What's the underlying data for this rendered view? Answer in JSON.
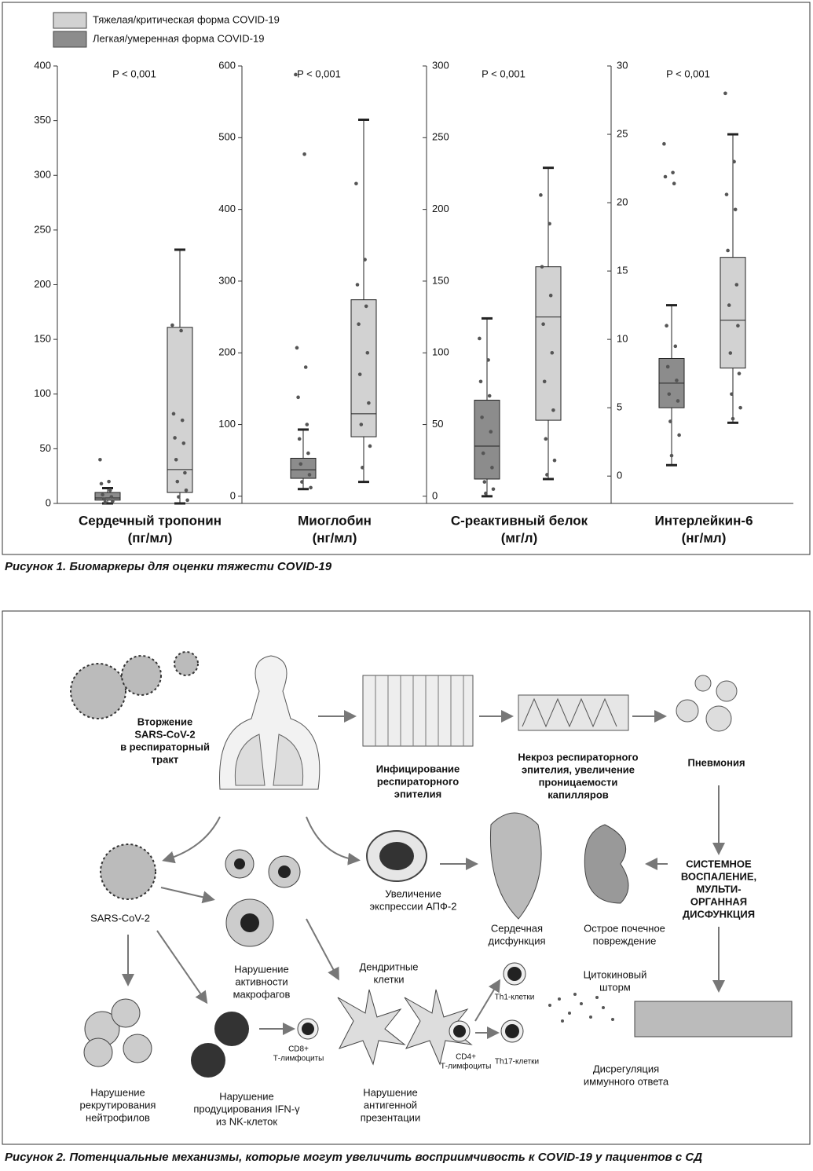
{
  "legend": [
    {
      "name": "Тяжелая/критическая форма COVID-19",
      "color": "#d2d2d2"
    },
    {
      "name": "Легкая/умеренная форма COVID-19",
      "color": "#8c8c8c"
    }
  ],
  "chart_data": [
    {
      "type": "box",
      "title": "Сердечный тропонин",
      "unit": "(пг/мл)",
      "annotation": "P < 0,001",
      "ylim": [
        0,
        400
      ],
      "yticks": [
        0,
        50,
        100,
        150,
        200,
        250,
        300,
        350,
        400
      ],
      "series": [
        {
          "box": {
            "min": 0,
            "q1": 3,
            "median": 5,
            "q3": 10,
            "max": 14
          },
          "points": [
            40,
            20,
            18,
            12,
            8,
            6,
            4,
            2,
            1
          ]
        },
        {
          "box": {
            "min": 0,
            "q1": 10,
            "median": 31,
            "q3": 161,
            "max": 232
          },
          "points": [
            163,
            158,
            82,
            76,
            60,
            55,
            40,
            28,
            20,
            12,
            6,
            3
          ]
        }
      ]
    },
    {
      "type": "box",
      "title": "Миоглобин",
      "unit": "(нг/мл)",
      "annotation": "P < 0,001",
      "ylim": [
        -10,
        600
      ],
      "yticks": [
        0,
        100,
        200,
        300,
        400,
        500,
        600
      ],
      "series": [
        {
          "box": {
            "min": 10,
            "q1": 25,
            "median": 37,
            "q3": 53,
            "max": 93
          },
          "points": [
            588,
            477,
            207,
            180,
            138,
            100,
            80,
            60,
            45,
            30,
            20,
            12
          ]
        },
        {
          "box": {
            "min": 20,
            "q1": 83,
            "median": 115,
            "q3": 274,
            "max": 525
          },
          "points": [
            436,
            330,
            295,
            265,
            240,
            200,
            170,
            130,
            100,
            70,
            40
          ]
        }
      ]
    },
    {
      "type": "box",
      "title": "С-реактивный белок",
      "unit": "(мг/л)",
      "annotation": "P < 0,001",
      "ylim": [
        -5,
        300
      ],
      "yticks": [
        0,
        50,
        100,
        150,
        200,
        250,
        300
      ],
      "series": [
        {
          "box": {
            "min": 0,
            "q1": 12,
            "median": 35,
            "q3": 67,
            "max": 124
          },
          "points": [
            110,
            95,
            80,
            70,
            55,
            45,
            30,
            20,
            10,
            5,
            2
          ]
        },
        {
          "box": {
            "min": 12,
            "q1": 53,
            "median": 125,
            "q3": 160,
            "max": 229
          },
          "points": [
            210,
            190,
            160,
            140,
            120,
            100,
            80,
            60,
            40,
            25,
            15
          ]
        }
      ]
    },
    {
      "type": "box",
      "title": "Интерлейкин-6",
      "unit": "(нг/мл)",
      "annotation": "P < 0,001",
      "ylim": [
        -2,
        30
      ],
      "yticks": [
        0,
        5,
        10,
        15,
        20,
        25,
        30
      ],
      "series": [
        {
          "box": {
            "min": 0.8,
            "q1": 5,
            "median": 6.8,
            "q3": 8.6,
            "max": 12.5
          },
          "points": [
            24.3,
            22.2,
            21.9,
            21.4,
            11,
            9.5,
            8,
            7,
            6,
            5.5,
            4,
            3,
            1.5
          ]
        },
        {
          "box": {
            "min": 3.9,
            "q1": 7.9,
            "median": 11.4,
            "q3": 16,
            "max": 25
          },
          "points": [
            28,
            23,
            20.6,
            19.5,
            16.5,
            14,
            12.5,
            11,
            9,
            7.5,
            6,
            5,
            4.2
          ]
        }
      ]
    }
  ],
  "figure1_caption": "Рисунок 1. Биомаркеры для оценки тяжести COVID-19",
  "figure2": {
    "labels": [
      {
        "lines": [
          "Вторжение",
          "SARS-CoV-2",
          "в респираторный",
          "тракт"
        ]
      },
      {
        "lines": [
          "Инфицирование",
          "респираторного",
          "эпителия"
        ]
      },
      {
        "lines": [
          "Некроз респираторного",
          "эпителия, увеличение",
          "проницаемости",
          "капилляров"
        ]
      },
      {
        "lines": [
          "Пневмония"
        ]
      },
      {
        "lines": [
          "SARS-CoV-2"
        ]
      },
      {
        "lines": [
          "Увеличение",
          "экспрессии АПФ-2"
        ]
      },
      {
        "lines": [
          "Сердечная",
          "дисфункция"
        ]
      },
      {
        "lines": [
          "Острое почечное",
          "повреждение"
        ]
      },
      {
        "lines": [
          "СИСТЕМНОЕ",
          "ВОСПАЛЕНИЕ,",
          "МУЛЬТИ-",
          "ОРГАННАЯ",
          "ДИСФУНКЦИЯ"
        ]
      },
      {
        "lines": [
          "Нарушение",
          "активности",
          "макрофагов"
        ]
      },
      {
        "lines": [
          "Дендритные",
          "клетки"
        ]
      },
      {
        "lines": [
          "Цитокиновый",
          "шторм"
        ]
      },
      {
        "lines": [
          "Th1-клетки"
        ]
      },
      {
        "lines": [
          "Th17-клетки"
        ]
      },
      {
        "lines": [
          "CD8+",
          "Т-лимфоциты"
        ]
      },
      {
        "lines": [
          "CD4+",
          "Т-лимфоциты"
        ]
      },
      {
        "lines": [
          "Дисрегуляция",
          "иммунного ответа"
        ]
      },
      {
        "lines": [
          "Нарушение",
          "рекрутирования",
          "нейтрофилов"
        ]
      },
      {
        "lines": [
          "Нарушение",
          "продуцирования IFN-γ",
          "из NK-клеток"
        ]
      },
      {
        "lines": [
          "Нарушение",
          "антигенной",
          "презентации"
        ]
      }
    ],
    "caption": "Рисунок 2. Потенциальные механизмы, которые могут увеличить восприимчивость к COVID-19 у пациентов с СД"
  }
}
